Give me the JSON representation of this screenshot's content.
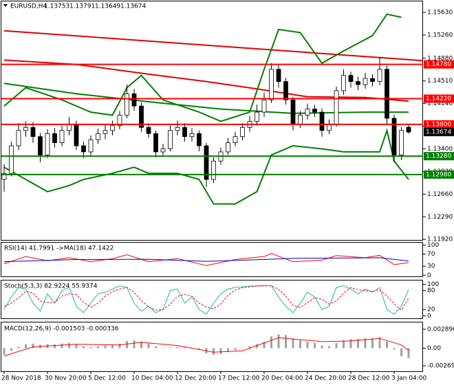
{
  "chart_data": [
    {
      "type": "candlestick",
      "title": "EURUSD,H4",
      "categories": [
        "28 Nov 2018",
        null,
        null,
        null,
        null,
        null,
        "30 Nov 20:00",
        null,
        null,
        null,
        null,
        null,
        "5 Dec 12:00",
        null,
        null,
        null,
        null,
        null,
        "10 Dec 04:00",
        null,
        null,
        null,
        null,
        null,
        "12 Dec 20:00",
        null,
        null,
        null,
        null,
        null,
        "17 Dec 12:00",
        null,
        null,
        null,
        null,
        null,
        "20 Dec 04:00",
        null,
        null,
        null,
        null,
        null,
        "24 Dec 20:00",
        null,
        null,
        null,
        null,
        null,
        "28 Dec 12:00",
        null,
        null,
        null,
        null,
        null,
        "3 Jan 04:00",
        null,
        null
      ],
      "open": [
        1.129,
        1.13,
        1.1345,
        1.137,
        1.1375,
        1.136,
        1.133,
        1.1365,
        1.135,
        1.137,
        1.138,
        1.1345,
        1.1335,
        1.1355,
        1.1365,
        1.137,
        1.1378,
        1.1395,
        1.143,
        1.141,
        1.1375,
        1.1365,
        1.1335,
        1.134,
        1.137,
        1.1375,
        1.136,
        1.1365,
        1.1345,
        1.129,
        1.132,
        1.1335,
        1.135,
        1.136,
        1.1375,
        1.1385,
        1.14,
        1.142,
        1.147,
        1.145,
        1.142,
        1.138,
        1.1395,
        1.1405,
        1.14,
        1.137,
        1.138,
        1.1435,
        1.146,
        1.145,
        1.1445,
        1.1455,
        1.145,
        1.147,
        1.139,
        1.133,
        1.13753
      ],
      "high": [
        1.1315,
        1.1352,
        1.1382,
        1.1385,
        1.1384,
        1.1366,
        1.1372,
        1.1374,
        1.1378,
        1.1392,
        1.1386,
        1.1352,
        1.1362,
        1.1373,
        1.138,
        1.1386,
        1.1402,
        1.1445,
        1.1438,
        1.1416,
        1.1382,
        1.137,
        1.1348,
        1.1378,
        1.1386,
        1.1382,
        1.1374,
        1.137,
        1.135,
        1.1326,
        1.1342,
        1.1358,
        1.1368,
        1.1382,
        1.1394,
        1.1412,
        1.1432,
        1.148,
        1.1478,
        1.1456,
        1.1425,
        1.1402,
        1.1414,
        1.1412,
        1.1406,
        1.1388,
        1.1442,
        1.147,
        1.1466,
        1.1458,
        1.1464,
        1.1462,
        1.149,
        1.1476,
        1.1396,
        1.1376,
        1.13791
      ],
      "low": [
        1.127,
        1.1295,
        1.1338,
        1.136,
        1.135,
        1.1318,
        1.1325,
        1.1342,
        1.1344,
        1.1362,
        1.1338,
        1.1325,
        1.1328,
        1.1348,
        1.1356,
        1.1362,
        1.1372,
        1.139,
        1.1402,
        1.1368,
        1.1358,
        1.1326,
        1.1328,
        1.1336,
        1.1362,
        1.1352,
        1.1352,
        1.1336,
        1.1278,
        1.1284,
        1.1314,
        1.133,
        1.1344,
        1.1354,
        1.1368,
        1.1378,
        1.1392,
        1.1415,
        1.144,
        1.1412,
        1.137,
        1.1374,
        1.1388,
        1.1392,
        1.136,
        1.1364,
        1.1376,
        1.1428,
        1.144,
        1.1436,
        1.1438,
        1.1442,
        1.1444,
        1.138,
        1.1318,
        1.1322,
        1.13649
      ],
      "close": [
        1.13,
        1.1345,
        1.137,
        1.1375,
        1.136,
        1.133,
        1.1365,
        1.135,
        1.137,
        1.138,
        1.1345,
        1.1335,
        1.1355,
        1.1365,
        1.137,
        1.1378,
        1.1395,
        1.143,
        1.141,
        1.1375,
        1.1365,
        1.1335,
        1.134,
        1.137,
        1.1375,
        1.136,
        1.1365,
        1.1345,
        1.129,
        1.132,
        1.1335,
        1.135,
        1.136,
        1.1375,
        1.1385,
        1.14,
        1.142,
        1.147,
        1.145,
        1.142,
        1.138,
        1.1395,
        1.1405,
        1.14,
        1.137,
        1.138,
        1.1435,
        1.146,
        1.145,
        1.1445,
        1.1455,
        1.145,
        1.147,
        1.139,
        1.133,
        1.137,
        1.13674
      ],
      "ylim": [
        1.119,
        1.1581
      ],
      "yticks": [
        {
          "value": 1.1563,
          "label": "1.15630"
        },
        {
          "value": 1.1526,
          "label": "1.15260"
        },
        {
          "value": 1.1488,
          "label": "1.14880"
        },
        {
          "value": 1.1451,
          "label": "1.14510"
        },
        {
          "value": 1.1414,
          "label": "1.14140"
        },
        {
          "value": 1.1377,
          "label": "1.13770"
        },
        {
          "value": 1.134,
          "label": "1.13400"
        },
        {
          "value": 1.1303,
          "label": "1.13030"
        },
        {
          "value": 1.1266,
          "label": "1.12660"
        },
        {
          "value": 1.1229,
          "label": "1.12290"
        },
        {
          "value": 1.1192,
          "label": "1.11920"
        }
      ],
      "levels": [
        {
          "value": 1.1478,
          "label": "1.14780",
          "color": "#ff0000"
        },
        {
          "value": 1.1422,
          "label": "1.14220",
          "color": "#ff0000"
        },
        {
          "value": 1.138,
          "label": "1.13800",
          "color": "#ff0000"
        },
        {
          "value": 1.1328,
          "label": "1.13280",
          "color": "#008000"
        },
        {
          "value": 1.1298,
          "label": "1.12980",
          "color": "#008000"
        }
      ],
      "lines": [
        {
          "color": "#e00000",
          "points": [
            [
              0,
              1.1533
            ],
            [
              58,
              1.1484
            ]
          ]
        },
        {
          "color": "#e00000",
          "points": [
            [
              0,
              1.1485
            ],
            [
              10,
              1.1478
            ],
            [
              20,
              1.1462
            ],
            [
              28,
              1.145
            ],
            [
              35,
              1.1438
            ],
            [
              42,
              1.1425
            ],
            [
              50,
              1.1424
            ],
            [
              56,
              1.1418
            ]
          ]
        },
        {
          "color": "#008000",
          "points": [
            [
              0,
              1.1447
            ],
            [
              10,
              1.143
            ],
            [
              20,
              1.1417
            ],
            [
              30,
              1.1405
            ],
            [
              40,
              1.1398
            ],
            [
              50,
              1.14
            ],
            [
              56,
              1.14
            ]
          ]
        },
        {
          "color": "#008000",
          "points": [
            [
              0,
              1.141
            ],
            [
              3,
              1.144
            ],
            [
              8,
              1.142
            ],
            [
              12,
              1.14
            ],
            [
              15,
              1.1395
            ],
            [
              17,
              1.144
            ],
            [
              19,
              1.146
            ],
            [
              22,
              1.142
            ],
            [
              27,
              1.14
            ],
            [
              30,
              1.1385
            ],
            [
              34,
              1.14
            ],
            [
              36,
              1.147
            ],
            [
              38,
              1.1535
            ],
            [
              41,
              1.153
            ],
            [
              44,
              1.148
            ],
            [
              47,
              1.15
            ],
            [
              51,
              1.1525
            ],
            [
              53,
              1.156
            ],
            [
              55,
              1.1555
            ]
          ]
        },
        {
          "color": "#008000",
          "points": [
            [
              0,
              1.131
            ],
            [
              3,
              1.129
            ],
            [
              6,
              1.127
            ],
            [
              9,
              1.128
            ],
            [
              11,
              1.129
            ],
            [
              15,
              1.13
            ],
            [
              18,
              1.131
            ],
            [
              20,
              1.13
            ],
            [
              24,
              1.13
            ],
            [
              27,
              1.129
            ],
            [
              29,
              1.125
            ],
            [
              32,
              1.125
            ],
            [
              35,
              1.127
            ],
            [
              37,
              1.133
            ],
            [
              40,
              1.1345
            ],
            [
              44,
              1.134
            ],
            [
              47,
              1.1335
            ],
            [
              52,
              1.1335
            ],
            [
              53,
              1.137
            ],
            [
              54,
              1.132
            ],
            [
              56,
              1.129
            ]
          ]
        }
      ]
    },
    {
      "type": "line",
      "title": "RSI(14) 41.7991 ->MA(18) 47.1422",
      "ylim": [
        -4,
        108
      ],
      "yticks": [
        100,
        70,
        30,
        0
      ],
      "series": [
        {
          "color": "#ff0000",
          "points": [
            [
              0,
              38
            ],
            [
              3,
              62
            ],
            [
              6,
              48
            ],
            [
              9,
              58
            ],
            [
              12,
              45
            ],
            [
              15,
              55
            ],
            [
              17,
              68
            ],
            [
              20,
              45
            ],
            [
              24,
              55
            ],
            [
              28,
              32
            ],
            [
              32,
              52
            ],
            [
              36,
              62
            ],
            [
              37,
              72
            ],
            [
              40,
              45
            ],
            [
              44,
              50
            ],
            [
              46,
              65
            ],
            [
              50,
              58
            ],
            [
              52,
              66
            ],
            [
              54,
              35
            ],
            [
              56,
              41.7991
            ]
          ]
        },
        {
          "color": "#0000cc",
          "points": [
            [
              0,
              45
            ],
            [
              10,
              52
            ],
            [
              20,
              53
            ],
            [
              28,
              46
            ],
            [
              36,
              52
            ],
            [
              40,
              56
            ],
            [
              48,
              57
            ],
            [
              52,
              58
            ],
            [
              56,
              47.1422
            ]
          ]
        }
      ]
    },
    {
      "type": "line",
      "title": "Stoch(5,3,3) 82.9224 55.9374",
      "ylim": [
        -8,
        112
      ],
      "yticks": [
        100,
        80,
        20,
        0
      ],
      "series": [
        {
          "color": "#20b2aa",
          "dash": false,
          "values": [
            20,
            60,
            90,
            85,
            40,
            15,
            70,
            40,
            80,
            90,
            30,
            10,
            40,
            70,
            75,
            85,
            95,
            90,
            40,
            15,
            30,
            10,
            20,
            80,
            85,
            40,
            60,
            20,
            5,
            40,
            70,
            85,
            90,
            92,
            94,
            95,
            96,
            95,
            60,
            30,
            10,
            40,
            75,
            60,
            20,
            30,
            90,
            95,
            85,
            70,
            85,
            75,
            90,
            20,
            5,
            30,
            82.9224
          ]
        },
        {
          "color": "#ff0000",
          "dash": true,
          "values": [
            30,
            40,
            57,
            78,
            72,
            47,
            42,
            42,
            63,
            70,
            67,
            43,
            27,
            40,
            62,
            77,
            85,
            90,
            75,
            48,
            28,
            18,
            20,
            37,
            62,
            68,
            62,
            40,
            28,
            22,
            38,
            65,
            82,
            89,
            92,
            94,
            95,
            95,
            84,
            62,
            33,
            27,
            42,
            58,
            52,
            37,
            47,
            72,
            90,
            83,
            80,
            77,
            83,
            62,
            38,
            18,
            55.9374
          ]
        }
      ]
    },
    {
      "type": "bar",
      "title": "MACD(12,26,9) -0.001503 -0.000336",
      "ylim": [
        -0.00352,
        0.00393
      ],
      "yticks": [
        {
          "value": 0.002896,
          "label": "0.002896"
        },
        {
          "value": 0,
          "label": "0.00"
        },
        {
          "value": -0.002693,
          "label": "-0.002693"
        }
      ],
      "color": "#a0a0a0",
      "values": [
        -0.001,
        -0.0004,
        0.0002,
        0.0006,
        0.0007,
        0.0005,
        0.0006,
        0.0006,
        0.0007,
        0.0008,
        0.0006,
        0.0003,
        0.0002,
        0.0003,
        0.0004,
        0.0005,
        0.0007,
        0.0011,
        0.0012,
        0.001,
        0.0007,
        0.0003,
        0,
        0.0001,
        0.0002,
        0.0001,
        0,
        -0.0002,
        -0.0008,
        -0.001,
        -0.0009,
        -0.0006,
        -0.0003,
        0,
        0.0003,
        0.0006,
        0.001,
        0.0018,
        0.0021,
        0.002,
        0.0015,
        0.0012,
        0.001,
        0.0008,
        0.0004,
        0.0003,
        0.0008,
        0.0012,
        0.0014,
        0.0014,
        0.0015,
        0.0015,
        0.0017,
        0.001,
        -0.0002,
        -0.0012,
        -0.0015
      ],
      "series": [
        {
          "color": "#ff0000",
          "points": [
            [
              0,
              -0.0012
            ],
            [
              4,
              0.0002
            ],
            [
              10,
              0.0006
            ],
            [
              16,
              0.0005
            ],
            [
              19,
              0.0009
            ],
            [
              24,
              0.0004
            ],
            [
              29,
              -0.0006
            ],
            [
              33,
              -0.0004
            ],
            [
              38,
              0.0016
            ],
            [
              44,
              0.001
            ],
            [
              48,
              0.0011
            ],
            [
              52,
              0.0015
            ],
            [
              55,
              0.0005
            ],
            [
              56,
              -0.000336
            ]
          ]
        }
      ]
    }
  ]
}
